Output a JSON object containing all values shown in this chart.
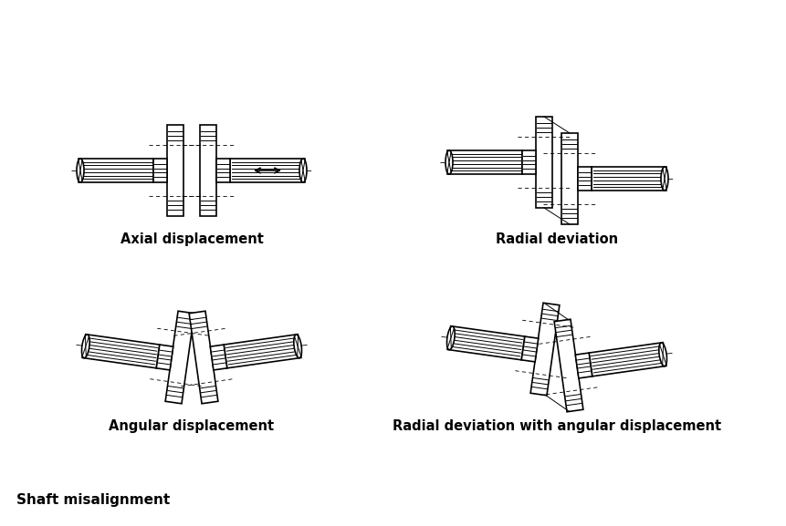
{
  "title": "Shaft misalignment",
  "labels": {
    "top_left": "Axial displacement",
    "top_right": "Radial deviation",
    "bottom_left": "Angular displacement",
    "bottom_right": "Radial deviation with angular displacement"
  },
  "bg_color": "#ffffff",
  "line_color": "#000000"
}
